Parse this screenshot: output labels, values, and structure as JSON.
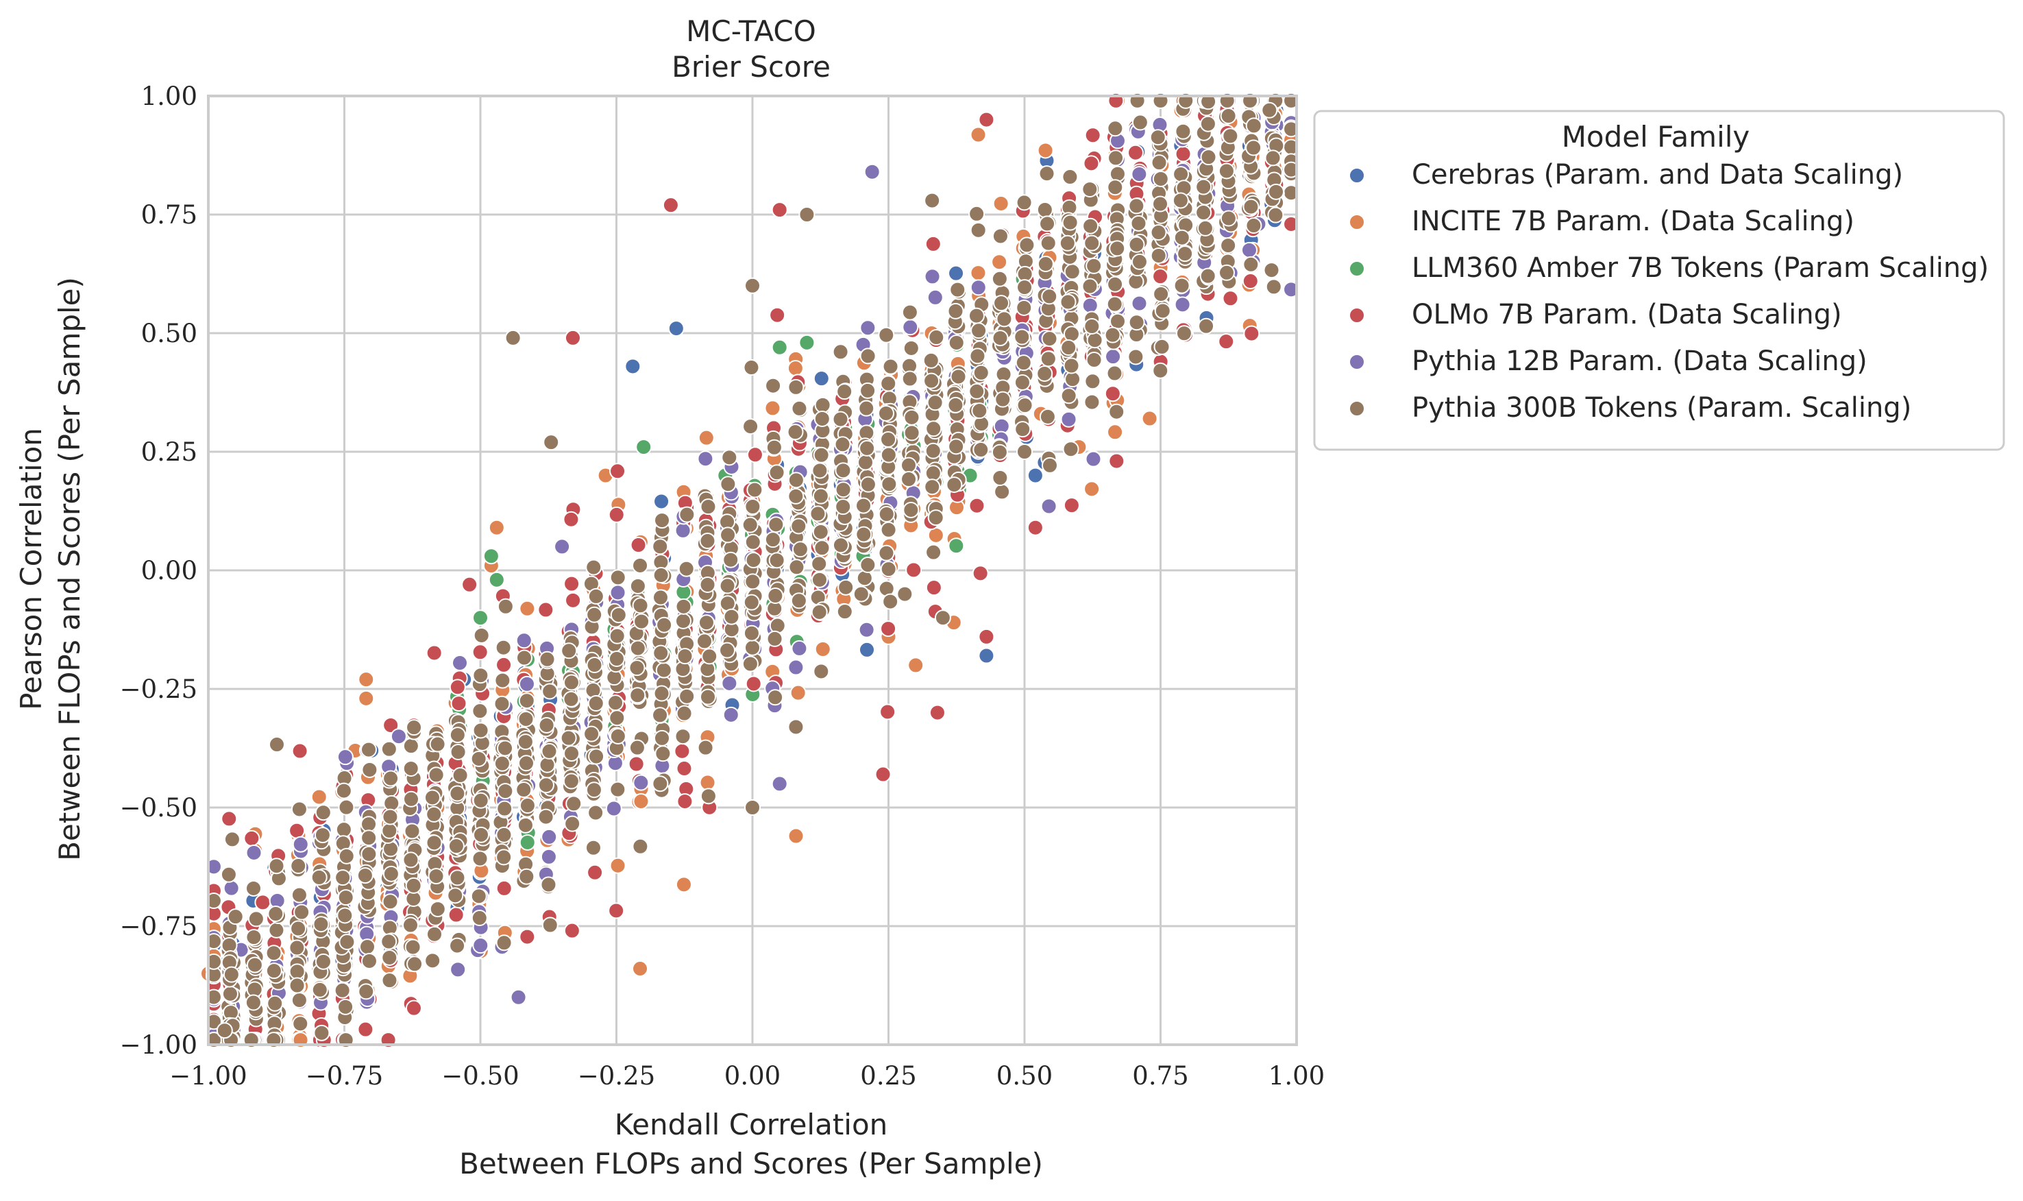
{
  "chart_data": {
    "type": "scatter",
    "title": "MC-TACO",
    "subtitle": "Brier Score",
    "xlabel_line1": "Kendall Correlation",
    "xlabel_line2": "Between FLOPs and Scores (Per Sample)",
    "ylabel_line1": "Pearson Correlation",
    "ylabel_line2": "Between FLOPs and Scores (Per Sample)",
    "xlim": [
      -1.0,
      1.0
    ],
    "ylim": [
      -1.0,
      1.0
    ],
    "xticks": [
      "−1.00",
      "−0.75",
      "−0.50",
      "−0.25",
      "0.00",
      "0.25",
      "0.50",
      "0.75",
      "1.00"
    ],
    "yticks": [
      "−1.00",
      "−0.75",
      "−0.50",
      "−0.25",
      "0.00",
      "0.25",
      "0.50",
      "0.75",
      "1.00"
    ],
    "grid": true,
    "legend": {
      "title": "Model Family",
      "placement": "outside-top-right"
    },
    "series": [
      {
        "name": "Cerebras (Param. and Data Scaling)",
        "color": "#4c72b0",
        "count": 160,
        "points": [
          [
            0.43,
            -0.18
          ],
          [
            0.52,
            0.2
          ],
          [
            -0.22,
            0.43
          ],
          [
            -0.7,
            -0.38
          ],
          [
            -0.53,
            -0.23
          ],
          [
            -0.14,
            0.51
          ]
        ]
      },
      {
        "name": "INCITE 7B Param. (Data Scaling)",
        "color": "#dd8452",
        "count": 380,
        "points": [
          [
            -0.71,
            -0.23
          ],
          [
            -0.71,
            -0.27
          ],
          [
            -0.73,
            -0.38
          ],
          [
            -0.47,
            0.09
          ],
          [
            -0.48,
            0.01
          ],
          [
            -1.0,
            -0.85
          ],
          [
            0.25,
            -0.14
          ],
          [
            0.3,
            -0.2
          ],
          [
            0.37,
            -0.11
          ],
          [
            0.53,
            0.33
          ],
          [
            0.6,
            0.26
          ],
          [
            0.73,
            0.32
          ],
          [
            -0.27,
            0.2
          ],
          [
            0.08,
            -0.56
          ]
        ]
      },
      {
        "name": "LLM360 Amber 7B Tokens (Param Scaling)",
        "color": "#55a868",
        "count": 260,
        "points": [
          [
            -0.48,
            0.03
          ],
          [
            -0.47,
            -0.02
          ],
          [
            -0.5,
            -0.1
          ],
          [
            -0.2,
            0.26
          ],
          [
            0.05,
            0.47
          ],
          [
            0.1,
            0.48
          ],
          [
            0.38,
            0.17
          ],
          [
            0.4,
            0.2
          ],
          [
            0.12,
            -0.02
          ],
          [
            -0.05,
            0.2
          ]
        ]
      },
      {
        "name": "OLMo 7B Param. (Data Scaling)",
        "color": "#c44e52",
        "count": 520,
        "points": [
          [
            -0.52,
            -0.03
          ],
          [
            -0.33,
            0.49
          ],
          [
            -0.15,
            0.77
          ],
          [
            0.05,
            0.76
          ],
          [
            0.43,
            -0.14
          ],
          [
            0.43,
            0.95
          ],
          [
            0.52,
            0.09
          ],
          [
            0.24,
            -0.43
          ],
          [
            0.34,
            -0.3
          ],
          [
            -0.9,
            -0.7
          ],
          [
            -0.98,
            -0.98
          ]
        ]
      },
      {
        "name": "Pythia 12B Param. (Data Scaling)",
        "color": "#8172b3",
        "count": 400,
        "points": [
          [
            -0.65,
            -0.35
          ],
          [
            0.22,
            0.84
          ],
          [
            0.05,
            -0.45
          ],
          [
            0.93,
            0.73
          ],
          [
            -0.35,
            0.05
          ],
          [
            -0.43,
            -0.9
          ],
          [
            -0.94,
            -0.8
          ]
        ]
      },
      {
        "name": "Pythia 300B Tokens (Param. Scaling)",
        "color": "#937860",
        "count": 1500,
        "points": [
          [
            -0.44,
            0.49
          ],
          [
            -0.37,
            0.27
          ],
          [
            0.0,
            0.6
          ],
          [
            0.1,
            0.75
          ],
          [
            0.0,
            -0.5
          ],
          [
            0.2,
            -0.05
          ],
          [
            0.28,
            -0.05
          ],
          [
            0.35,
            -0.1
          ],
          [
            0.5,
            0.25
          ],
          [
            -0.95,
            -0.73
          ],
          [
            -0.97,
            -0.97
          ],
          [
            0.95,
            0.97
          ]
        ]
      }
    ]
  }
}
